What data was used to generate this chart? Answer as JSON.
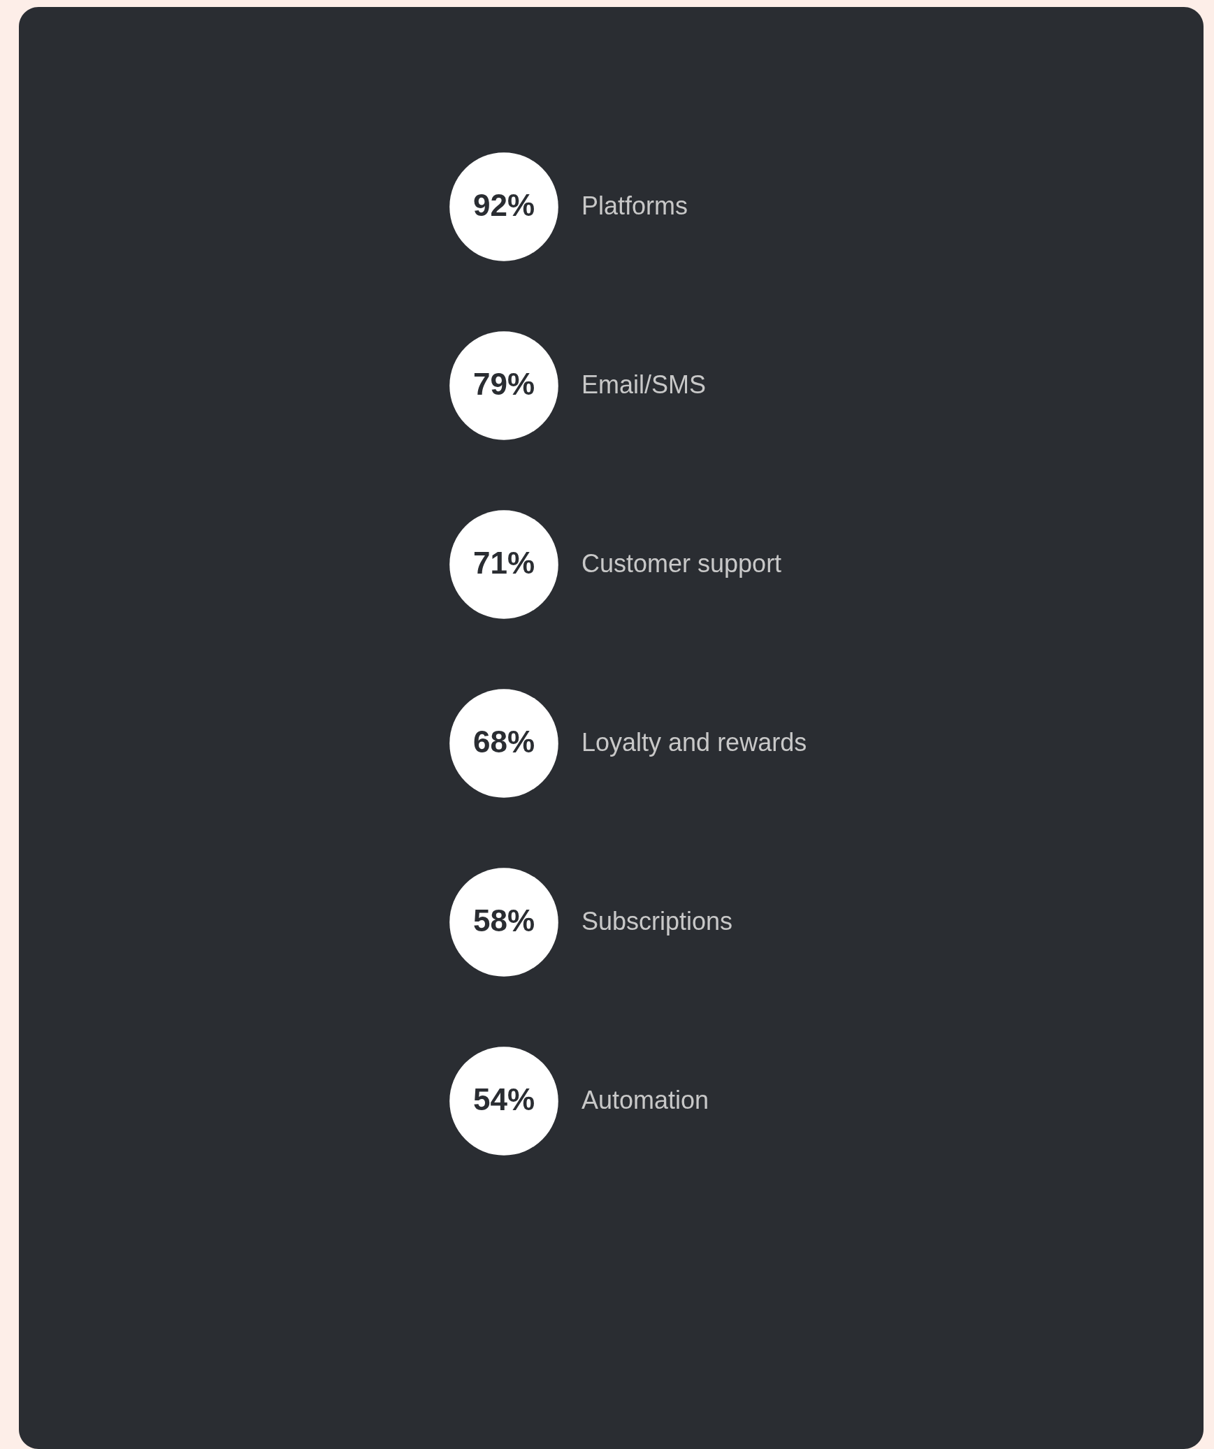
{
  "chart_data": {
    "type": "other",
    "categories": [
      "Platforms",
      "Email/SMS",
      "Customer support",
      "Loyalty and rewards",
      "Subscriptions",
      "Automation"
    ],
    "values": [
      92,
      79,
      71,
      68,
      58,
      54
    ],
    "value_labels": [
      "92%",
      "79%",
      "71%",
      "68%",
      "58%",
      "54%"
    ],
    "color": "#ffffff"
  }
}
